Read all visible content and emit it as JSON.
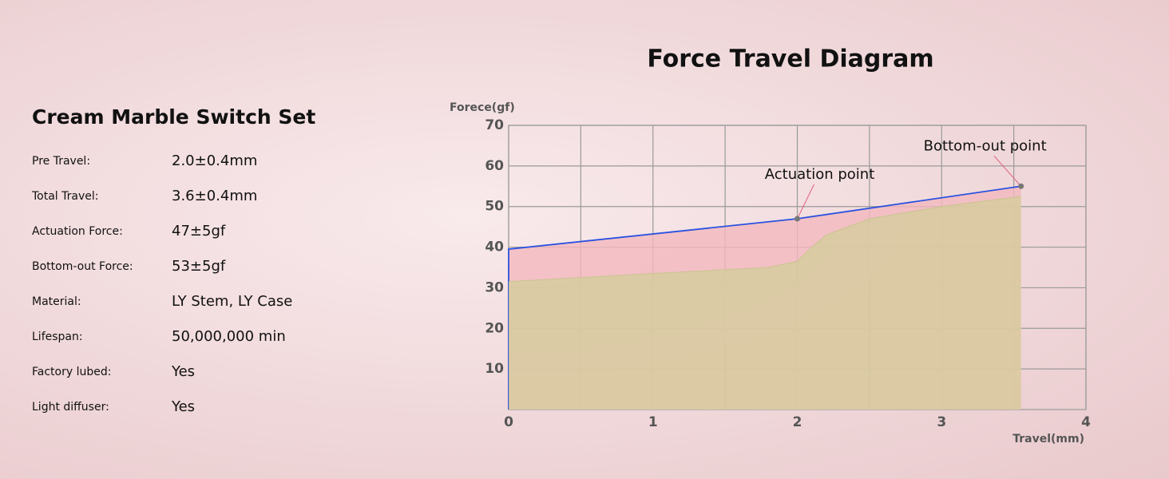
{
  "specs": {
    "title": "Cream Marble Switch Set",
    "rows": [
      [
        "Pre Travel:",
        "2.0±0.4mm"
      ],
      [
        "Total Travel:",
        "3.6±0.4mm"
      ],
      [
        "Actuation Force:",
        "47±5gf"
      ],
      [
        "Bottom-out Force:",
        "53±5gf"
      ],
      [
        "Material:",
        "LY Stem, LY Case"
      ],
      [
        "Lifespan:",
        "50,000,000 min"
      ],
      [
        "Factory lubed:",
        "Yes"
      ],
      [
        "Light diffuser:",
        "Yes"
      ]
    ]
  },
  "chart_data": {
    "type": "area",
    "title": "Force Travel Diagram",
    "y_label": "Forece(gf)",
    "x_label": "Travel(mm)",
    "xlim": [
      0,
      4
    ],
    "xticks": [
      0,
      1,
      2,
      3,
      4
    ],
    "x_minor_ticks": [
      0.5,
      1.5,
      2.5,
      3.5
    ],
    "ylim": [
      0,
      70
    ],
    "yticks": [
      10,
      20,
      30,
      40,
      50,
      60,
      70
    ],
    "grid": true,
    "series": [
      {
        "color": "#2a52e0",
        "fill": "#f2b8be",
        "x": [
          0,
          0,
          2,
          3.55
        ],
        "y": [
          0,
          39.5,
          47,
          55
        ]
      },
      {
        "color": "#c9c48f",
        "fill": "#d4cd9c",
        "x": [
          0,
          1,
          1.8,
          2,
          2.1,
          2.2,
          2.5,
          3,
          3.55
        ],
        "y": [
          31.5,
          33.5,
          35,
          36.5,
          40,
          43,
          47,
          50,
          52.5
        ]
      }
    ],
    "annotations": [
      {
        "text": "Actuation point",
        "x": 2,
        "y": 47
      },
      {
        "text": "Bottom-out point",
        "x": 3.55,
        "y": 55
      }
    ]
  }
}
